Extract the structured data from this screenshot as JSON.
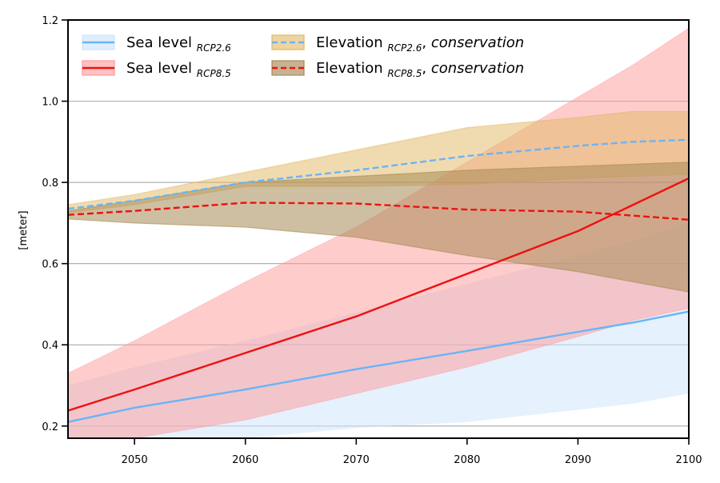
{
  "chart_data": {
    "type": "line",
    "title": "",
    "xlabel": "",
    "ylabel": "[meter]",
    "xlim": [
      2044,
      2100
    ],
    "ylim": [
      0.17,
      1.2
    ],
    "xticks": [
      2050,
      2060,
      2070,
      2080,
      2090,
      2100
    ],
    "yticks": [
      0.2,
      0.4,
      0.6,
      0.8,
      1.0,
      1.2
    ],
    "xtick_labels": [
      "2050",
      "2060",
      "2070",
      "2080",
      "2090",
      "2100"
    ],
    "ytick_labels": [
      "0.2",
      "0.4",
      "0.6",
      "0.8",
      "1.0",
      "1.2"
    ],
    "grid": "horizontal",
    "legend_position": "top-left",
    "x": [
      2044,
      2050,
      2060,
      2070,
      2080,
      2090,
      2095,
      2100
    ],
    "series": [
      {
        "name": "Sea level RCP2.6",
        "legend_main": "Sea level ",
        "legend_sub": "RCP2.6",
        "legend_tail": "",
        "legend_italic": "",
        "style": "solid",
        "color": "#6ab4f8",
        "fill": "#cfe5fb",
        "values": [
          0.21,
          0.245,
          0.29,
          0.34,
          0.385,
          0.432,
          0.455,
          0.482
        ],
        "lower": [
          0.165,
          0.165,
          0.17,
          0.195,
          0.21,
          0.24,
          0.255,
          0.28
        ],
        "upper": [
          0.3,
          0.345,
          0.41,
          0.48,
          0.55,
          0.62,
          0.655,
          0.7
        ]
      },
      {
        "name": "Sea level RCP8.5",
        "legend_main": "Sea level ",
        "legend_sub": "RCP8.5",
        "legend_tail": "",
        "legend_italic": "",
        "style": "solid",
        "color": "#ee1111",
        "fill": "#ff9999",
        "values": [
          0.238,
          0.29,
          0.38,
          0.47,
          0.575,
          0.68,
          0.745,
          0.81
        ],
        "lower": [
          0.165,
          0.165,
          0.215,
          0.28,
          0.345,
          0.42,
          0.46,
          0.49
        ],
        "upper": [
          0.33,
          0.41,
          0.555,
          0.69,
          0.85,
          1.01,
          1.09,
          1.18
        ]
      },
      {
        "name": "Elevation RCP2.6, conservation",
        "legend_main": "Elevation ",
        "legend_sub": "RCP2.6",
        "legend_tail": ", ",
        "legend_italic": "conservation",
        "style": "dashed",
        "color": "#6ab4f8",
        "fill": "#e2b862",
        "values": [
          0.735,
          0.755,
          0.8,
          0.83,
          0.865,
          0.89,
          0.9,
          0.905
        ],
        "lower": [
          0.725,
          0.745,
          0.79,
          0.79,
          0.795,
          0.81,
          0.815,
          0.82
        ],
        "upper": [
          0.745,
          0.77,
          0.825,
          0.88,
          0.935,
          0.96,
          0.975,
          0.975
        ]
      },
      {
        "name": "Elevation RCP8.5, conservation",
        "legend_main": "Elevation ",
        "legend_sub": "RCP8.5",
        "legend_tail": ", ",
        "legend_italic": "conservation",
        "style": "dashed",
        "color": "#ee1111",
        "fill": "#a88a56",
        "values": [
          0.72,
          0.73,
          0.75,
          0.748,
          0.733,
          0.728,
          0.718,
          0.708
        ],
        "lower": [
          0.71,
          0.7,
          0.69,
          0.665,
          0.62,
          0.58,
          0.555,
          0.53
        ],
        "upper": [
          0.73,
          0.755,
          0.8,
          0.815,
          0.83,
          0.84,
          0.845,
          0.85
        ]
      }
    ]
  }
}
